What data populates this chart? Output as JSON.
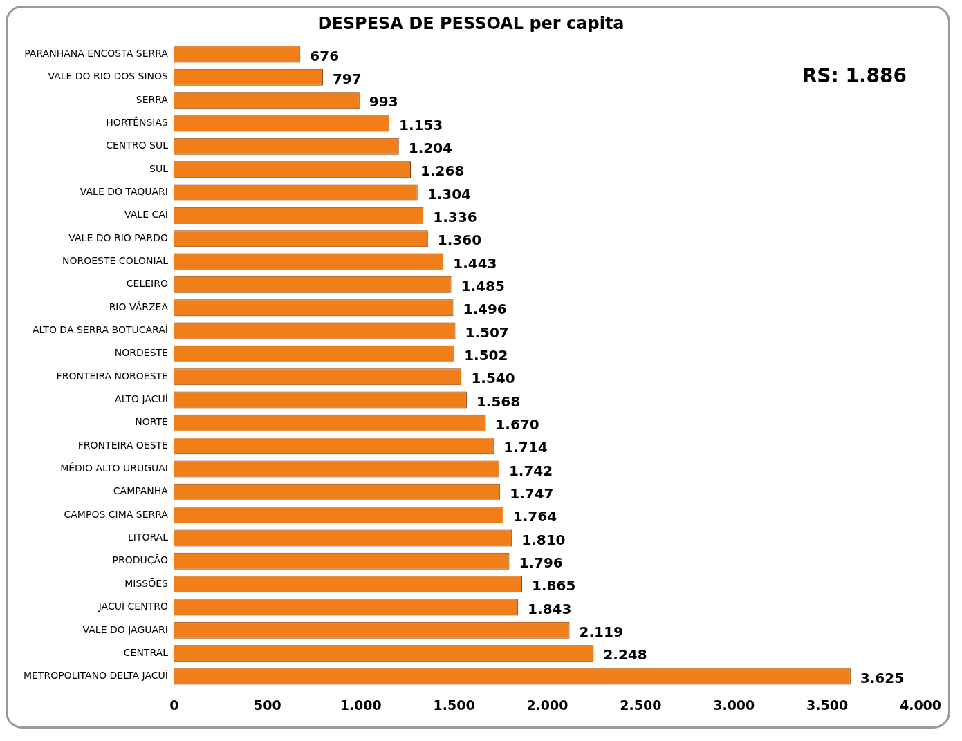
{
  "chart_data": {
    "type": "bar",
    "orientation": "horizontal",
    "title": "DESPESA DE PESSOAL per capita",
    "categories": [
      "PARANHANA ENCOSTA SERRA",
      "VALE DO RIO DOS SINOS",
      "SERRA",
      "HORTÊNSIAS",
      "CENTRO SUL",
      "SUL",
      "VALE DO TAQUARI",
      "VALE CAÍ",
      "VALE DO RIO PARDO",
      "NOROESTE COLONIAL",
      "CELEIRO",
      "RIO VÁRZEA",
      "ALTO DA SERRA BOTUCARAÍ",
      "NORDESTE",
      "FRONTEIRA NOROESTE",
      "ALTO JACUÍ",
      "NORTE",
      "FRONTEIRA OESTE",
      "MÉDIO ALTO URUGUAI",
      "CAMPANHA",
      "CAMPOS CIMA SERRA",
      "LITORAL",
      "PRODUÇÃO",
      "MISSÕES",
      "JACUÍ CENTRO",
      "VALE DO JAGUARI",
      "CENTRAL",
      "METROPOLITANO DELTA JACUÍ"
    ],
    "values": [
      676,
      797,
      993,
      1153,
      1204,
      1268,
      1304,
      1336,
      1360,
      1443,
      1485,
      1496,
      1507,
      1502,
      1540,
      1568,
      1670,
      1714,
      1742,
      1747,
      1764,
      1810,
      1796,
      1865,
      1843,
      2119,
      2248,
      3625
    ],
    "value_labels": [
      "676",
      "797",
      "993",
      "1.153",
      "1.204",
      "1.268",
      "1.304",
      "1.336",
      "1.360",
      "1.443",
      "1.485",
      "1.496",
      "1.507",
      "1.502",
      "1.540",
      "1.568",
      "1.670",
      "1.714",
      "1.742",
      "1.747",
      "1.764",
      "1.810",
      "1.796",
      "1.865",
      "1.843",
      "2.119",
      "2.248",
      "3.625"
    ],
    "color": "#f07f1a",
    "xlim": [
      0,
      4000
    ],
    "xticks": [
      0,
      500,
      {
        "value": 1000,
        "label": "1.000"
      },
      {
        "value": 1500,
        "label": "1.500"
      },
      {
        "value": 2000,
        "label": "2.000"
      },
      {
        "value": 2500,
        "label": "2.500"
      },
      {
        "value": 3000,
        "label": "3.000"
      },
      {
        "value": 3500,
        "label": "3.500"
      },
      {
        "value": 4000,
        "label": "4.000"
      }
    ],
    "grid": false,
    "legend": false,
    "annotations": [
      "RS: 1.886"
    ]
  }
}
